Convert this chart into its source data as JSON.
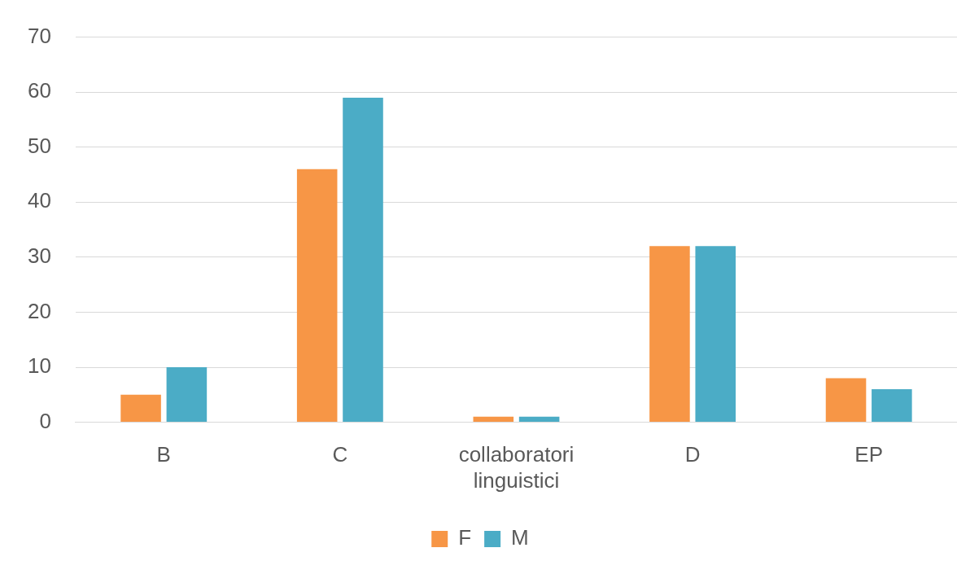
{
  "chart_data": {
    "type": "bar",
    "categories": [
      "B",
      "C",
      "collaboratori linguistici",
      "D",
      "EP"
    ],
    "series": [
      {
        "name": "F",
        "color": "#f79646",
        "values": [
          5,
          46,
          1,
          32,
          8
        ]
      },
      {
        "name": "M",
        "color": "#4bacc6",
        "values": [
          10,
          59,
          1,
          32,
          6
        ]
      }
    ],
    "ylim": [
      0,
      70
    ],
    "yticks": [
      0,
      10,
      20,
      30,
      40,
      50,
      60,
      70
    ],
    "grid": "y",
    "legend": "bottom"
  }
}
